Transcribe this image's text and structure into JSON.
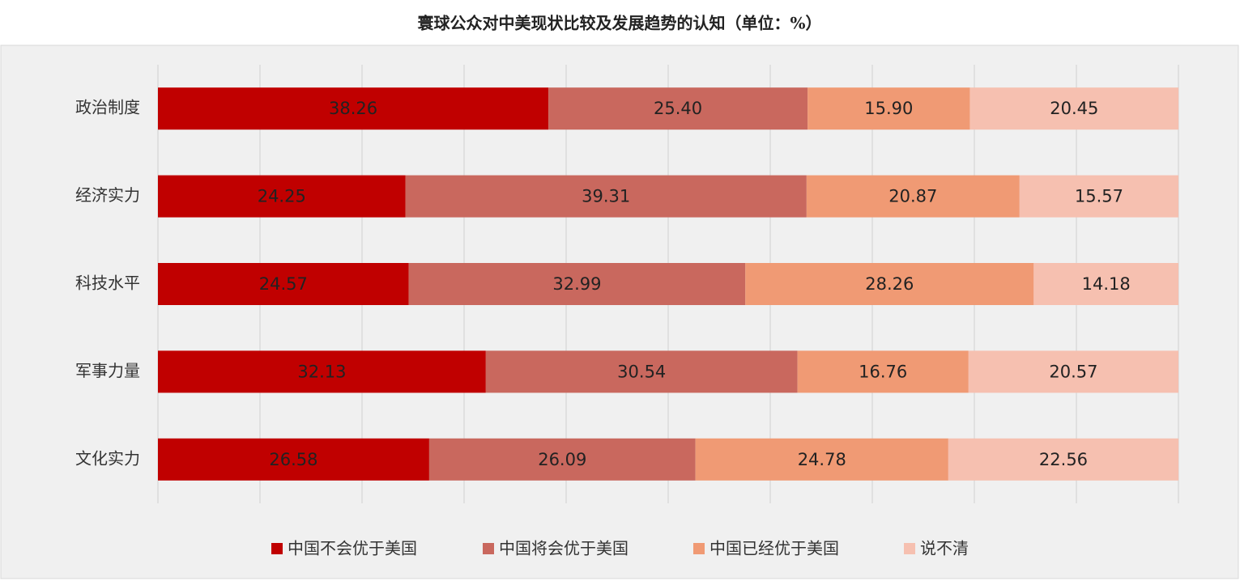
{
  "chart_data": {
    "type": "stacked_barh",
    "title": "寰球公众对中美现状比较及发展趋势的认知（单位：%）",
    "categories": [
      "政治制度",
      "经济实力",
      "科技水平",
      "军事力量",
      "文化实力"
    ],
    "series": [
      {
        "name": "中国不会优于美国",
        "color": "#c00000",
        "values": [
          38.26,
          24.25,
          24.57,
          32.13,
          26.58
        ],
        "value_labels": [
          "38.26",
          "24.25",
          "24.57",
          "32.13",
          "26.58"
        ]
      },
      {
        "name": "中国将会优于美国",
        "color": "#c9685e",
        "values": [
          25.4,
          39.31,
          32.99,
          30.54,
          26.09
        ],
        "value_labels": [
          "25.40",
          "39.31",
          "32.99",
          "30.54",
          "26.09"
        ]
      },
      {
        "name": "中国已经优于美国",
        "color": "#f09a74",
        "values": [
          15.9,
          20.87,
          28.26,
          16.76,
          24.78
        ],
        "value_labels": [
          "15.90",
          "20.87",
          "28.26",
          "16.76",
          "24.78"
        ]
      },
      {
        "name": "说不清",
        "color": "#f6c0b0",
        "values": [
          20.45,
          15.57,
          14.18,
          20.57,
          22.56
        ],
        "value_labels": [
          "20.45",
          "15.57",
          "14.18",
          "20.57",
          "22.56"
        ]
      }
    ],
    "xlim": [
      0,
      100
    ],
    "xticks": [
      0,
      10,
      20,
      30,
      40,
      50,
      60,
      70,
      80,
      90,
      100
    ],
    "grid": true,
    "legend": "bottom"
  }
}
